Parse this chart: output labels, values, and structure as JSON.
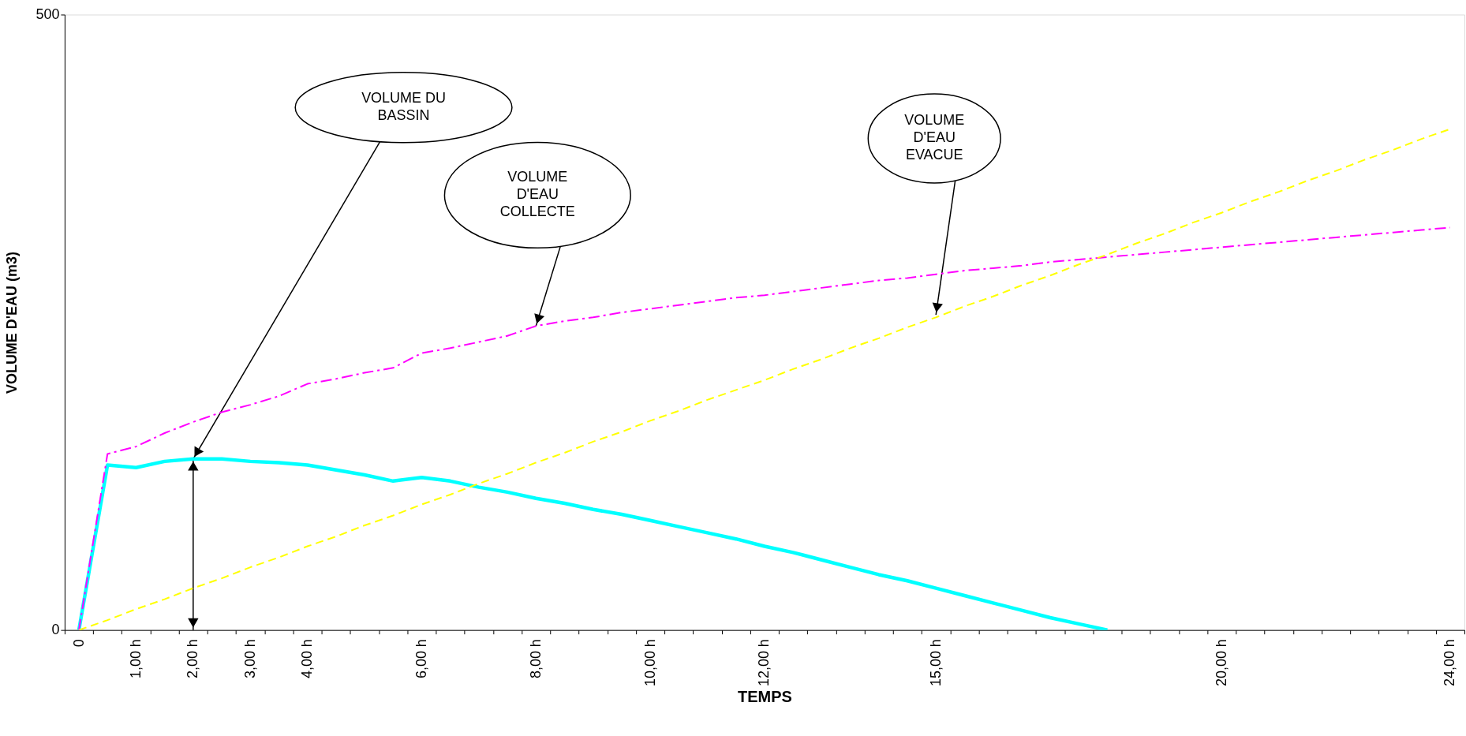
{
  "chart_data": {
    "type": "line",
    "xlabel": "TEMPS",
    "ylabel": "VOLUME D'EAU (m3)",
    "categories": [
      "0",
      null,
      "1,00 h",
      null,
      "2,00 h",
      null,
      "3,00 h",
      null,
      "4,00 h",
      null,
      null,
      null,
      "6,00 h",
      null,
      null,
      null,
      "8,00 h",
      null,
      null,
      null,
      "10,00 h",
      null,
      null,
      null,
      "12,00 h",
      null,
      null,
      null,
      null,
      null,
      "15,00 h",
      null,
      null,
      null,
      null,
      null,
      null,
      null,
      null,
      null,
      "20,00 h",
      null,
      null,
      null,
      null,
      null,
      null,
      null,
      "24,00 h"
    ],
    "series": [
      {
        "color": "#00ffff",
        "line_style": "solid",
        "values": [
          0,
          134,
          132,
          137,
          139,
          139,
          137,
          136,
          134,
          130,
          126,
          121,
          124,
          121,
          116,
          112,
          107,
          103,
          98,
          94,
          89,
          84,
          79,
          74,
          68,
          63,
          57,
          51,
          45,
          40,
          34,
          28,
          22,
          16,
          10,
          5,
          0,
          null,
          null,
          null,
          null,
          null,
          null,
          null,
          null,
          null,
          null,
          null,
          null
        ]
      },
      {
        "color": "#ff00ff",
        "line_style": "dashdot",
        "values": [
          0,
          143,
          149,
          160,
          169,
          177,
          183,
          190,
          200,
          204,
          209,
          213,
          225,
          229,
          234,
          239,
          247,
          251,
          254,
          258,
          261,
          264,
          267,
          270,
          272,
          275,
          278,
          281,
          284,
          286,
          289,
          292,
          294,
          296,
          299,
          301,
          303,
          305,
          307,
          309,
          311,
          313,
          315,
          317,
          319,
          321,
          323,
          325,
          327
        ]
      },
      {
        "color": "#ffff00",
        "line_style": "dashed",
        "values": [
          0,
          8,
          17,
          25,
          34,
          42,
          51,
          59,
          68,
          76,
          85,
          93,
          102,
          110,
          119,
          127,
          136,
          144,
          153,
          161,
          170,
          178,
          187,
          195,
          203,
          212,
          220,
          229,
          237,
          246,
          254,
          263,
          271,
          280,
          288,
          297,
          305,
          314,
          322,
          331,
          339,
          348,
          356,
          365,
          373,
          382,
          390,
          399,
          407
        ]
      }
    ],
    "ylim": [
      0,
      500
    ],
    "yticks": [
      0,
      500
    ],
    "grid": false,
    "annotations": [
      {
        "text": "VOLUME DU\nBASSIN",
        "x": "2,00 h",
        "y": 139
      },
      {
        "text": "VOLUME\nD'EAU\nCOLLECTE",
        "x": "8,00 h",
        "y": 247
      },
      {
        "text": "VOLUME\nD'EAU\nEVACUE",
        "x": "15,00 h",
        "y": 256
      }
    ]
  }
}
